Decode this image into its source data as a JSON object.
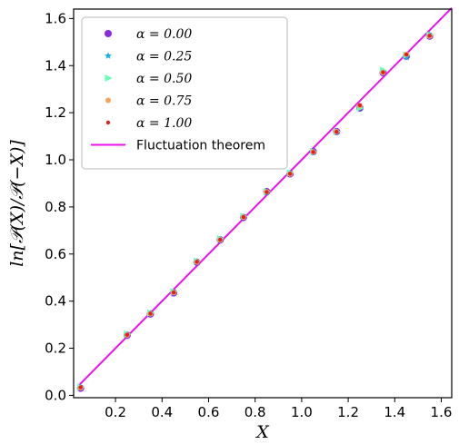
{
  "chart_data": {
    "type": "scatter",
    "xlabel": "X",
    "ylabel": "ln[𝒫(X)/𝒫(−X)]",
    "xlim": [
      0.02,
      1.645
    ],
    "ylim": [
      -0.01,
      1.64
    ],
    "xticks": [
      "0.2",
      "0.4",
      "0.6",
      "0.8",
      "1.0",
      "1.2",
      "1.4",
      "1.6"
    ],
    "yticks": [
      "0.0",
      "0.2",
      "0.4",
      "0.6",
      "0.8",
      "1.0",
      "1.2",
      "1.4",
      "1.6"
    ],
    "legend_position": "top-left",
    "series": [
      {
        "name": "α = 0.00",
        "marker": "circle",
        "color": "#8a2be2",
        "x": [
          0.05,
          0.25,
          0.35,
          0.45,
          0.55,
          0.65,
          0.75,
          0.85,
          0.95,
          1.05,
          1.15,
          1.25,
          1.35,
          1.45,
          1.55
        ],
        "y": [
          0.03,
          0.255,
          0.345,
          0.435,
          0.565,
          0.66,
          0.755,
          0.865,
          0.94,
          1.035,
          1.12,
          1.22,
          1.37,
          1.44,
          1.525
        ]
      },
      {
        "name": "α = 0.25",
        "marker": "star",
        "color": "#1ab0e8",
        "x": [
          0.05,
          0.25,
          0.35,
          0.45,
          0.55,
          0.65,
          0.75,
          0.85,
          0.95,
          1.05,
          1.15,
          1.25,
          1.35,
          1.45,
          1.55
        ],
        "y": [
          0.033,
          0.258,
          0.348,
          0.438,
          0.568,
          0.662,
          0.758,
          0.862,
          0.942,
          1.032,
          1.118,
          1.225,
          1.375,
          1.435,
          1.53
        ]
      },
      {
        "name": "α = 0.50",
        "marker": "triangle-right",
        "color": "#66ffb3",
        "x": [
          0.05,
          0.25,
          0.35,
          0.45,
          0.55,
          0.65,
          0.75,
          0.85,
          0.95,
          1.05,
          1.15,
          1.25,
          1.35,
          1.45,
          1.55
        ],
        "y": [
          0.035,
          0.26,
          0.35,
          0.44,
          0.57,
          0.665,
          0.76,
          0.865,
          0.945,
          1.035,
          1.12,
          1.22,
          1.38,
          1.445,
          1.53
        ]
      },
      {
        "name": "α = 0.75",
        "marker": "circle-small",
        "color": "#f4a460",
        "x": [
          0.05,
          0.25,
          0.35,
          0.45,
          0.55,
          0.65,
          0.75,
          0.85,
          0.95,
          1.05,
          1.15,
          1.25,
          1.35,
          1.45,
          1.55
        ],
        "y": [
          0.032,
          0.256,
          0.346,
          0.436,
          0.566,
          0.66,
          0.756,
          0.864,
          0.94,
          1.034,
          1.12,
          1.23,
          1.37,
          1.448,
          1.525
        ]
      },
      {
        "name": "α = 1.00",
        "marker": "dot",
        "color": "#e0201a",
        "x": [
          0.05,
          0.25,
          0.35,
          0.45,
          0.55,
          0.65,
          0.75,
          0.85,
          0.95,
          1.05,
          1.15,
          1.25,
          1.35,
          1.45,
          1.55
        ],
        "y": [
          0.034,
          0.257,
          0.347,
          0.437,
          0.567,
          0.661,
          0.757,
          0.863,
          0.941,
          1.033,
          1.119,
          1.232,
          1.372,
          1.447,
          1.527
        ]
      }
    ],
    "line": {
      "name": "Fluctuation theorem",
      "color": "#ee10ee",
      "x": [
        0.04,
        1.645
      ],
      "y": [
        0.04,
        1.645
      ]
    }
  }
}
